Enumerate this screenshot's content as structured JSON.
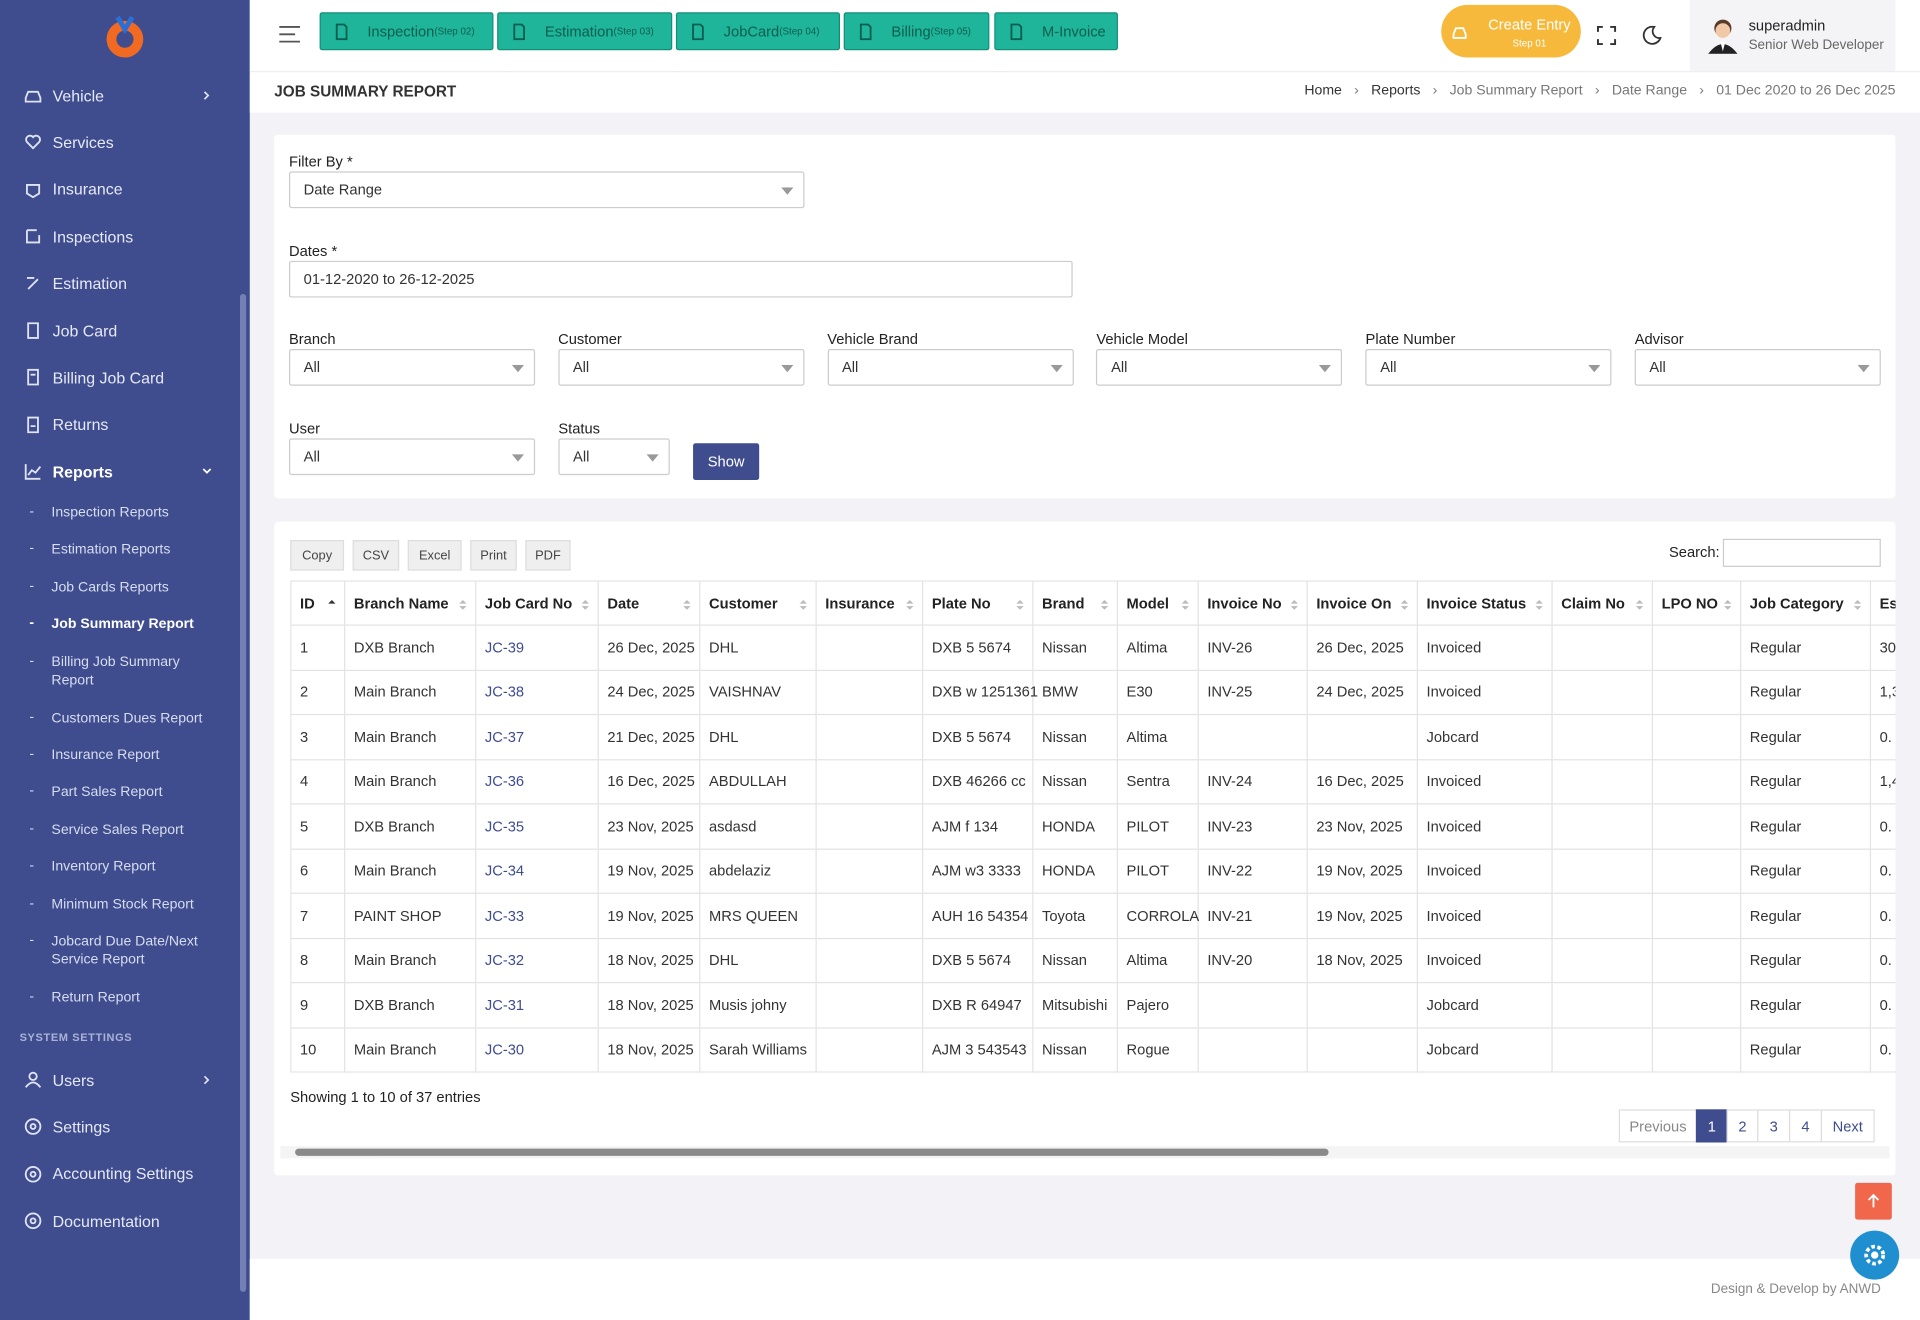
{
  "sidebar": {
    "menu": [
      "Vehicle",
      "Services",
      "Insurance",
      "Inspections",
      "Estimation",
      "Job Card",
      "Billing Job Card",
      "Returns",
      "Reports"
    ],
    "submenu": [
      "Inspection Reports",
      "Estimation Reports",
      "Job Cards Reports",
      "Job Summary Report",
      "Billing Job Summary Report",
      "Customers Dues Report",
      "Insurance Report",
      "Part Sales Report",
      "Service Sales Report",
      "Inventory Report",
      "Minimum Stock Report",
      "Jobcard Due Date/Next Service Report",
      "Return Report"
    ],
    "section": "SYSTEM SETTINGS",
    "settings": [
      "Users",
      "Settings",
      "Accounting Settings",
      "Documentation"
    ]
  },
  "topbar": {
    "steps": [
      {
        "label": "Inspection",
        "step": "(Step 02)"
      },
      {
        "label": "Estimation",
        "step": "(Step 03)"
      },
      {
        "label": "JobCard",
        "step": "(Step 04)"
      },
      {
        "label": "Billing",
        "step": "(Step 05)"
      },
      {
        "label": "M-Invoice",
        "step": null
      }
    ],
    "create": {
      "label": "Create Entry",
      "step": "Step 01"
    },
    "user": {
      "name": "superadmin",
      "role": "Senior Web Developer"
    }
  },
  "header": {
    "title": "JOB SUMMARY REPORT",
    "breadcrumb": [
      "Home",
      "Reports",
      "Job Summary Report",
      "Date Range",
      "01 Dec 2020 to 26 Dec 2025"
    ]
  },
  "filter": {
    "filter_by": {
      "label": "Filter By *",
      "value": "Date Range"
    },
    "dates": {
      "label": "Dates *",
      "value": "01-12-2020 to 26-12-2025"
    },
    "selects": [
      {
        "label": "Branch",
        "value": "All"
      },
      {
        "label": "Customer",
        "value": "All"
      },
      {
        "label": "Vehicle Brand",
        "value": "All"
      },
      {
        "label": "Vehicle Model",
        "value": "All"
      },
      {
        "label": "Plate Number",
        "value": "All"
      },
      {
        "label": "Advisor",
        "value": "All"
      }
    ],
    "selects2": [
      {
        "label": "User",
        "value": "All"
      },
      {
        "label": "Status",
        "value": "All"
      }
    ],
    "button": "Show"
  },
  "table": {
    "buttons": [
      "Copy",
      "CSV",
      "Excel",
      "Print",
      "PDF"
    ],
    "search": "Search:",
    "columns": [
      "ID",
      "Branch Name",
      "Job Card No",
      "Date",
      "Customer",
      "Insurance",
      "Plate No",
      "Brand",
      "Model",
      "Invoice No",
      "Invoice On",
      "Invoice Status",
      "Claim No",
      "LPO NO",
      "Job Category",
      "Es"
    ],
    "rows": [
      [
        1,
        "DXB Branch",
        "JC-39",
        "26 Dec, 2025",
        "DHL",
        null,
        "DXB 5 5674",
        "Nissan",
        "Altima",
        "INV-26",
        "26 Dec, 2025",
        "Invoiced",
        null,
        null,
        "Regular",
        "30"
      ],
      [
        2,
        "Main Branch",
        "JC-38",
        "24 Dec, 2025",
        "VAISHNAV",
        null,
        "DXB w 1251361",
        "BMW",
        "E30",
        "INV-25",
        "24 Dec, 2025",
        "Invoiced",
        null,
        null,
        "Regular",
        "1,3"
      ],
      [
        3,
        "Main Branch",
        "JC-37",
        "21 Dec, 2025",
        "DHL",
        null,
        "DXB 5 5674",
        "Nissan",
        "Altima",
        null,
        null,
        "Jobcard",
        null,
        null,
        "Regular",
        "0."
      ],
      [
        4,
        "Main Branch",
        "JC-36",
        "16 Dec, 2025",
        "ABDULLAH",
        null,
        "DXB 46266 cc",
        "Nissan",
        "Sentra",
        "INV-24",
        "16 Dec, 2025",
        "Invoiced",
        null,
        null,
        "Regular",
        "1,4"
      ],
      [
        5,
        "DXB Branch",
        "JC-35",
        "23 Nov, 2025",
        "asdasd",
        null,
        "AJM f 134",
        "HONDA",
        "PILOT",
        "INV-23",
        "23 Nov, 2025",
        "Invoiced",
        null,
        null,
        "Regular",
        "0."
      ],
      [
        6,
        "Main Branch",
        "JC-34",
        "19 Nov, 2025",
        "abdelaziz",
        null,
        "AJM w3 3333",
        "HONDA",
        "PILOT",
        "INV-22",
        "19 Nov, 2025",
        "Invoiced",
        null,
        null,
        "Regular",
        "0."
      ],
      [
        7,
        "PAINT SHOP",
        "JC-33",
        "19 Nov, 2025",
        "MRS QUEEN",
        null,
        "AUH 16 54354",
        "Toyota",
        "CORROLA",
        "INV-21",
        "19 Nov, 2025",
        "Invoiced",
        null,
        null,
        "Regular",
        "0."
      ],
      [
        8,
        "Main Branch",
        "JC-32",
        "18 Nov, 2025",
        "DHL",
        null,
        "DXB 5 5674",
        "Nissan",
        "Altima",
        "INV-20",
        "18 Nov, 2025",
        "Invoiced",
        null,
        null,
        "Regular",
        "0."
      ],
      [
        9,
        "DXB Branch",
        "JC-31",
        "18 Nov, 2025",
        "Musis johny",
        null,
        "DXB R 64947",
        "Mitsubishi",
        "Pajero",
        null,
        null,
        "Jobcard",
        null,
        null,
        "Regular",
        "0."
      ],
      [
        10,
        "Main Branch",
        "JC-30",
        "18 Nov, 2025",
        "Sarah Williams",
        null,
        "AJM 3 543543",
        "Nissan",
        "Rogue",
        null,
        null,
        "Jobcard",
        null,
        null,
        "Regular",
        "0."
      ]
    ],
    "info": "Showing 1 to 10 of 37 entries",
    "pagination": [
      "Previous",
      "1",
      "2",
      "3",
      "4",
      "Next"
    ]
  },
  "footer": "Design & Develop by ANWD"
}
